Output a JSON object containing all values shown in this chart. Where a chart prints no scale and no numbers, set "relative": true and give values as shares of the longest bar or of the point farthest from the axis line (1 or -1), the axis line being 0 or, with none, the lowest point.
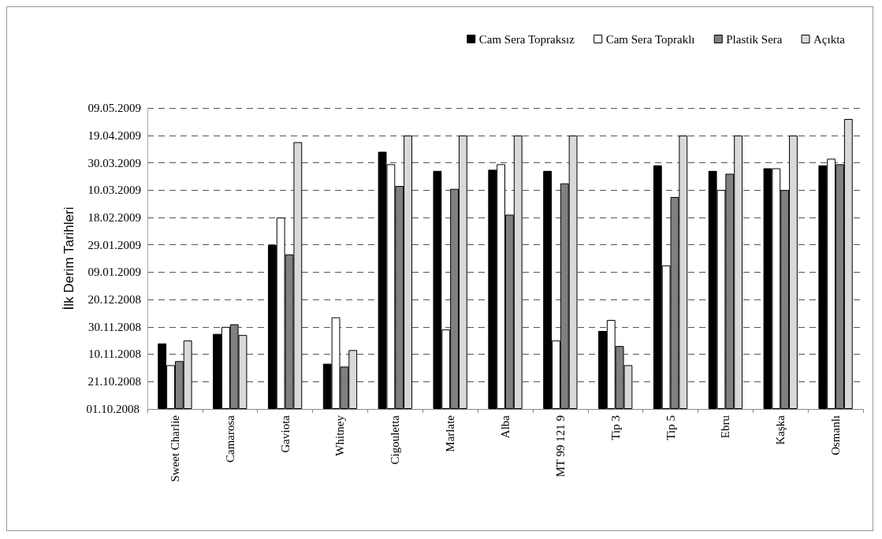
{
  "chart_data": {
    "type": "bar",
    "relative": true,
    "categories": [
      "Sweet Charlie",
      "Camarosa",
      "Gaviota",
      "Whitney",
      "Cigouletta",
      "Marlate",
      "Alba",
      "MT 99 121 9",
      "Tip 3",
      "Tip 5",
      "Ebru",
      "Kaşka",
      "Osmanlı"
    ],
    "series": [
      {
        "name": "Cam Sera Topraksız",
        "color": "#000000",
        "values": [
          0.226,
          0.259,
          0.566,
          0.156,
          0.887,
          0.821,
          0.825,
          0.821,
          0.269,
          0.84,
          0.821,
          0.83,
          0.84
        ]
      },
      {
        "name": "Cam Sera Topraklı",
        "color": "#ffffff",
        "values": [
          0.151,
          0.283,
          0.66,
          0.316,
          0.844,
          0.274,
          0.844,
          0.236,
          0.307,
          0.495,
          0.755,
          0.83,
          0.863
        ]
      },
      {
        "name": "Plastik Sera",
        "color": "#808080",
        "values": [
          0.165,
          0.292,
          0.533,
          0.146,
          0.769,
          0.759,
          0.67,
          0.778,
          0.217,
          0.731,
          0.811,
          0.755,
          0.844
        ]
      },
      {
        "name": "Açıkta",
        "color": "#d9d9d9",
        "values": [
          0.236,
          0.255,
          0.92,
          0.203,
          0.943,
          0.943,
          0.943,
          0.943,
          0.151,
          0.943,
          0.943,
          0.943,
          1
        ]
      }
    ],
    "ref_lines": [
      {
        "axis": "y",
        "value": 0.094,
        "label": "21.10.2008",
        "color": "#555555",
        "line_style": "dashed"
      },
      {
        "axis": "y",
        "value": 0.189,
        "label": "10.11.2008",
        "color": "#555555",
        "line_style": "dashed"
      },
      {
        "axis": "y",
        "value": 0.283,
        "label": "30.11.2008",
        "color": "#555555",
        "line_style": "dashed"
      },
      {
        "axis": "y",
        "value": 0.377,
        "label": "20.12.2008",
        "color": "#555555",
        "line_style": "dashed"
      },
      {
        "axis": "y",
        "value": 0.472,
        "label": "09.01.2009",
        "color": "#555555",
        "line_style": "dashed"
      },
      {
        "axis": "y",
        "value": 0.566,
        "label": "29.01.2009",
        "color": "#555555",
        "line_style": "dashed"
      },
      {
        "axis": "y",
        "value": 0.66,
        "label": "18.02.2009",
        "color": "#555555",
        "line_style": "dashed"
      },
      {
        "axis": "y",
        "value": 0.755,
        "label": "10.03.2009",
        "color": "#555555",
        "line_style": "dashed"
      },
      {
        "axis": "y",
        "value": 0.849,
        "label": "30.03.2009",
        "color": "#555555",
        "line_style": "dashed"
      },
      {
        "axis": "y",
        "value": 0.943,
        "label": "19.04.2009",
        "color": "#555555",
        "line_style": "dashed"
      },
      {
        "axis": "y",
        "value": 1.038,
        "label": "09.05.2009",
        "color": "#555555",
        "line_style": "dashed"
      }
    ],
    "annotations": [
      "01.10.2008",
      "İlk Derim Tarihleri"
    ],
    "legend": "top right"
  }
}
